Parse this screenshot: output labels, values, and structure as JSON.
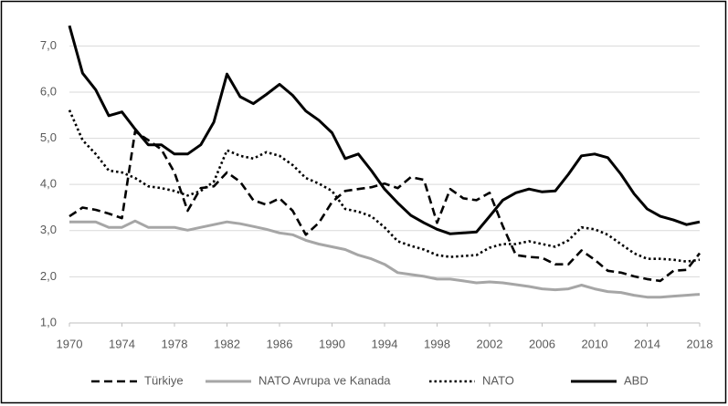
{
  "chart_data": {
    "type": "line",
    "x": [
      1970,
      1971,
      1972,
      1973,
      1974,
      1975,
      1976,
      1977,
      1978,
      1979,
      1980,
      1981,
      1982,
      1983,
      1984,
      1985,
      1986,
      1987,
      1988,
      1989,
      1990,
      1991,
      1992,
      1993,
      1994,
      1995,
      1996,
      1997,
      1998,
      1999,
      2000,
      2001,
      2002,
      2003,
      2004,
      2005,
      2006,
      2007,
      2008,
      2009,
      2010,
      2011,
      2012,
      2013,
      2014,
      2015,
      2016,
      2017,
      2018
    ],
    "xlim": [
      1970,
      2018
    ],
    "xticks": [
      1970,
      1974,
      1978,
      1982,
      1986,
      1990,
      1994,
      1998,
      2002,
      2006,
      2010,
      2014,
      2018
    ],
    "ylim": [
      1,
      7.6
    ],
    "yticks": [
      {
        "value": 1,
        "label": "1,0"
      },
      {
        "value": 2,
        "label": "2,0"
      },
      {
        "value": 3,
        "label": "3,0"
      },
      {
        "value": 4,
        "label": "4,0"
      },
      {
        "value": 5,
        "label": "5,0"
      },
      {
        "value": 6,
        "label": "6,0"
      },
      {
        "value": 7,
        "label": "7,0"
      }
    ],
    "grid": true,
    "legend": "bottom",
    "series": [
      {
        "name": "Türkiye",
        "color": "#000000",
        "line_style": "dashed",
        "values": [
          3.31,
          3.5,
          3.45,
          3.37,
          3.27,
          5.15,
          4.96,
          4.76,
          4.26,
          3.43,
          3.92,
          3.96,
          4.26,
          4.06,
          3.66,
          3.56,
          3.7,
          3.43,
          2.91,
          3.17,
          3.62,
          3.86,
          3.9,
          3.94,
          4.02,
          3.92,
          4.16,
          4.1,
          3.17,
          3.9,
          3.7,
          3.66,
          3.82,
          3.1,
          2.47,
          2.43,
          2.41,
          2.27,
          2.27,
          2.57,
          2.37,
          2.13,
          2.09,
          2.01,
          1.95,
          1.91,
          2.13,
          2.15,
          2.51
        ]
      },
      {
        "name": "NATO Avrupa ve Kanada",
        "color": "#a6a6a6",
        "line_style": "solid",
        "values": [
          3.19,
          3.19,
          3.19,
          3.07,
          3.07,
          3.21,
          3.07,
          3.07,
          3.07,
          3.01,
          3.07,
          3.13,
          3.19,
          3.15,
          3.09,
          3.03,
          2.95,
          2.91,
          2.79,
          2.71,
          2.65,
          2.59,
          2.47,
          2.39,
          2.27,
          2.09,
          2.05,
          2.01,
          1.95,
          1.95,
          1.91,
          1.87,
          1.89,
          1.87,
          1.83,
          1.79,
          1.74,
          1.72,
          1.74,
          1.82,
          1.74,
          1.68,
          1.66,
          1.6,
          1.56,
          1.56,
          1.58,
          1.6,
          1.62
        ]
      },
      {
        "name": "NATO",
        "color": "#000000",
        "line_style": "dotted",
        "values": [
          5.61,
          4.96,
          4.66,
          4.3,
          4.26,
          4.14,
          3.96,
          3.92,
          3.86,
          3.76,
          3.86,
          4.06,
          4.74,
          4.62,
          4.56,
          4.7,
          4.62,
          4.42,
          4.14,
          4.02,
          3.86,
          3.47,
          3.41,
          3.31,
          3.07,
          2.77,
          2.67,
          2.59,
          2.47,
          2.43,
          2.45,
          2.47,
          2.63,
          2.71,
          2.71,
          2.77,
          2.71,
          2.65,
          2.79,
          3.07,
          3.03,
          2.91,
          2.71,
          2.51,
          2.39,
          2.39,
          2.37,
          2.33,
          2.37
        ]
      },
      {
        "name": "ABD",
        "color": "#000000",
        "line_style": "solid",
        "values": [
          7.44,
          6.41,
          6.05,
          5.49,
          5.57,
          5.2,
          4.86,
          4.86,
          4.66,
          4.66,
          4.86,
          5.35,
          6.39,
          5.9,
          5.75,
          5.95,
          6.17,
          5.93,
          5.59,
          5.39,
          5.12,
          4.56,
          4.66,
          4.3,
          3.9,
          3.6,
          3.33,
          3.17,
          3.03,
          2.93,
          2.95,
          2.97,
          3.31,
          3.66,
          3.82,
          3.9,
          3.84,
          3.86,
          4.22,
          4.62,
          4.66,
          4.58,
          4.22,
          3.8,
          3.47,
          3.31,
          3.23,
          3.13,
          3.19
        ]
      }
    ]
  }
}
